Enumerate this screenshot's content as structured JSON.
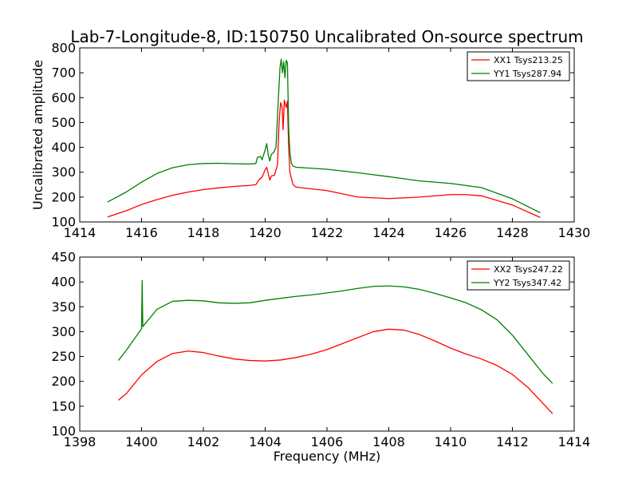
{
  "figure_title": "Lab-7-Longitude-8, ID:150750 Uncalibrated On-source spectrum",
  "chart_data": [
    {
      "type": "line",
      "title": "Lab-7-Longitude-8, ID:150750 Uncalibrated On-source spectrum",
      "xlabel": "",
      "ylabel": "Uncalibrated amplitude",
      "xlim": [
        1414,
        1430
      ],
      "ylim": [
        100,
        800
      ],
      "xticks": [
        1414,
        1416,
        1418,
        1420,
        1422,
        1424,
        1426,
        1428,
        1430
      ],
      "yticks": [
        100,
        200,
        300,
        400,
        500,
        600,
        700,
        800
      ],
      "legend": "top-right",
      "series": [
        {
          "name": "XX1 Tsys213.25",
          "color": "#ff0000",
          "points": [
            [
              1414.9,
              120
            ],
            [
              1415.5,
              145
            ],
            [
              1416,
              170
            ],
            [
              1416.5,
              190
            ],
            [
              1417,
              207
            ],
            [
              1417.5,
              220
            ],
            [
              1418,
              230
            ],
            [
              1418.5,
              237
            ],
            [
              1419,
              243
            ],
            [
              1419.5,
              247
            ],
            [
              1419.7,
              250
            ],
            [
              1419.8,
              270
            ],
            [
              1419.9,
              280
            ],
            [
              1420.0,
              310
            ],
            [
              1420.05,
              320
            ],
            [
              1420.1,
              295
            ],
            [
              1420.15,
              268
            ],
            [
              1420.2,
              285
            ],
            [
              1420.3,
              288
            ],
            [
              1420.4,
              330
            ],
            [
              1420.45,
              500
            ],
            [
              1420.5,
              580
            ],
            [
              1420.55,
              560
            ],
            [
              1420.58,
              470
            ],
            [
              1420.62,
              590
            ],
            [
              1420.68,
              560
            ],
            [
              1420.72,
              585
            ],
            [
              1420.76,
              400
            ],
            [
              1420.8,
              300
            ],
            [
              1420.9,
              250
            ],
            [
              1421,
              240
            ],
            [
              1422,
              226
            ],
            [
              1423,
              200
            ],
            [
              1424,
              194
            ],
            [
              1425,
              200
            ],
            [
              1426,
              210
            ],
            [
              1426.5,
              210
            ],
            [
              1427,
              205
            ],
            [
              1428,
              168
            ],
            [
              1428.9,
              118
            ]
          ]
        },
        {
          "name": "YY1 Tsys287.94",
          "color": "#008000",
          "points": [
            [
              1414.9,
              180
            ],
            [
              1415.5,
              220
            ],
            [
              1416,
              260
            ],
            [
              1416.5,
              295
            ],
            [
              1417,
              318
            ],
            [
              1417.5,
              330
            ],
            [
              1418,
              335
            ],
            [
              1418.5,
              336
            ],
            [
              1419,
              334
            ],
            [
              1419.5,
              333
            ],
            [
              1419.7,
              335
            ],
            [
              1419.75,
              360
            ],
            [
              1419.85,
              363
            ],
            [
              1419.9,
              350
            ],
            [
              1420.0,
              390
            ],
            [
              1420.05,
              415
            ],
            [
              1420.1,
              370
            ],
            [
              1420.15,
              345
            ],
            [
              1420.2,
              372
            ],
            [
              1420.28,
              380
            ],
            [
              1420.35,
              400
            ],
            [
              1420.42,
              580
            ],
            [
              1420.48,
              720
            ],
            [
              1420.52,
              755
            ],
            [
              1420.56,
              700
            ],
            [
              1420.6,
              745
            ],
            [
              1420.64,
              680
            ],
            [
              1420.68,
              750
            ],
            [
              1420.72,
              740
            ],
            [
              1420.76,
              480
            ],
            [
              1420.8,
              380
            ],
            [
              1420.85,
              335
            ],
            [
              1420.9,
              325
            ],
            [
              1421,
              320
            ],
            [
              1422,
              312
            ],
            [
              1423,
              298
            ],
            [
              1424,
              282
            ],
            [
              1425,
              265
            ],
            [
              1426,
              255
            ],
            [
              1427,
              238
            ],
            [
              1428,
              193
            ],
            [
              1428.9,
              137
            ]
          ]
        }
      ]
    },
    {
      "type": "line",
      "title": "",
      "xlabel": "Frequency (MHz)",
      "ylabel": "",
      "xlim": [
        1398,
        1414
      ],
      "ylim": [
        100,
        450
      ],
      "xticks": [
        1398,
        1400,
        1402,
        1404,
        1406,
        1408,
        1410,
        1412,
        1414
      ],
      "yticks": [
        100,
        150,
        200,
        250,
        300,
        350,
        400,
        450
      ],
      "legend": "top-right",
      "series": [
        {
          "name": "XX2 Tsys247.22",
          "color": "#ff0000",
          "points": [
            [
              1399.25,
              162
            ],
            [
              1399.5,
              175
            ],
            [
              1400,
              213
            ],
            [
              1400.5,
              240
            ],
            [
              1401,
              256
            ],
            [
              1401.5,
              261
            ],
            [
              1402,
              258
            ],
            [
              1402.5,
              251
            ],
            [
              1403,
              245
            ],
            [
              1403.5,
              242
            ],
            [
              1404,
              241
            ],
            [
              1404.5,
              243
            ],
            [
              1405,
              248
            ],
            [
              1405.5,
              255
            ],
            [
              1406,
              264
            ],
            [
              1406.5,
              276
            ],
            [
              1407,
              288
            ],
            [
              1407.5,
              300
            ],
            [
              1408,
              305
            ],
            [
              1408.5,
              303
            ],
            [
              1409,
              294
            ],
            [
              1409.5,
              281
            ],
            [
              1410,
              267
            ],
            [
              1410.5,
              255
            ],
            [
              1411,
              245
            ],
            [
              1411.5,
              232
            ],
            [
              1412,
              214
            ],
            [
              1412.5,
              188
            ],
            [
              1413,
              155
            ],
            [
              1413.3,
              135
            ]
          ]
        },
        {
          "name": "YY2 Tsys347.42",
          "color": "#008000",
          "points": [
            [
              1399.25,
              242
            ],
            [
              1399.5,
              262
            ],
            [
              1400,
              306
            ],
            [
              1400.02,
              403
            ],
            [
              1400.04,
              310
            ],
            [
              1400.5,
              345
            ],
            [
              1401,
              361
            ],
            [
              1401.5,
              363
            ],
            [
              1402,
              362
            ],
            [
              1402.5,
              358
            ],
            [
              1403,
              357
            ],
            [
              1403.5,
              358
            ],
            [
              1404,
              363
            ],
            [
              1404.5,
              367
            ],
            [
              1405,
              371
            ],
            [
              1405.5,
              374
            ],
            [
              1406,
              378
            ],
            [
              1406.5,
              382
            ],
            [
              1407,
              387
            ],
            [
              1407.5,
              391
            ],
            [
              1408,
              392
            ],
            [
              1408.5,
              390
            ],
            [
              1409,
              385
            ],
            [
              1409.5,
              377
            ],
            [
              1410,
              368
            ],
            [
              1410.5,
              358
            ],
            [
              1411,
              344
            ],
            [
              1411.5,
              324
            ],
            [
              1412,
              293
            ],
            [
              1412.5,
              254
            ],
            [
              1413,
              215
            ],
            [
              1413.3,
              196
            ]
          ]
        }
      ]
    }
  ]
}
